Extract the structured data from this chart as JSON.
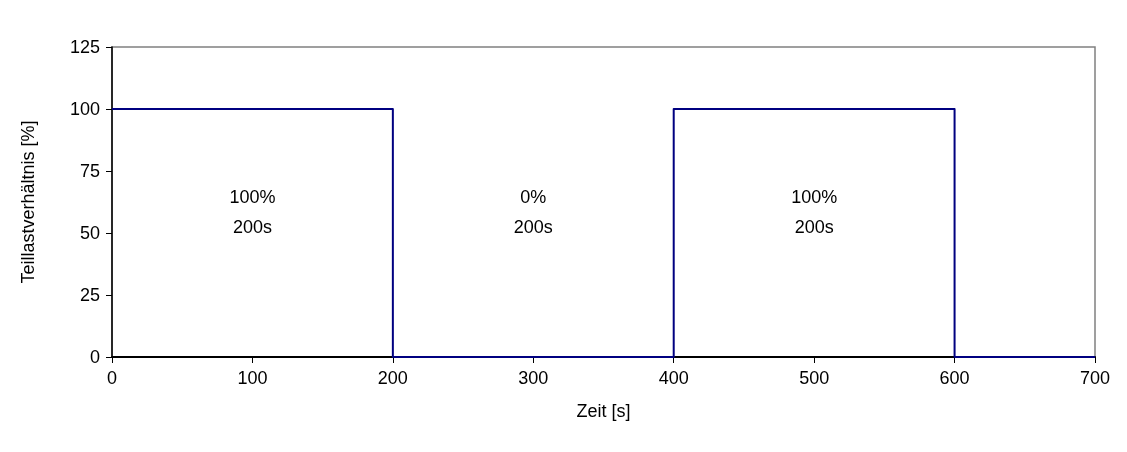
{
  "chart_data": {
    "type": "step",
    "xlabel": "Zeit [s]",
    "ylabel": "Teillastverhältnis [%]",
    "x": [
      0,
      200,
      400,
      600,
      700
    ],
    "series": [
      {
        "color": "#000080",
        "values": [
          100,
          0,
          100,
          0,
          0
        ]
      }
    ],
    "xlim": [
      0,
      700
    ],
    "xticks": [
      0,
      100,
      200,
      300,
      400,
      500,
      600,
      700
    ],
    "ylim": [
      0,
      125
    ],
    "yticks": [
      0,
      25,
      50,
      75,
      100,
      125
    ],
    "grid": false,
    "marker": "none",
    "line_style": "solid",
    "annotations": [
      "100%\n200s",
      "0%\n200s",
      "100%\n200s"
    ]
  }
}
